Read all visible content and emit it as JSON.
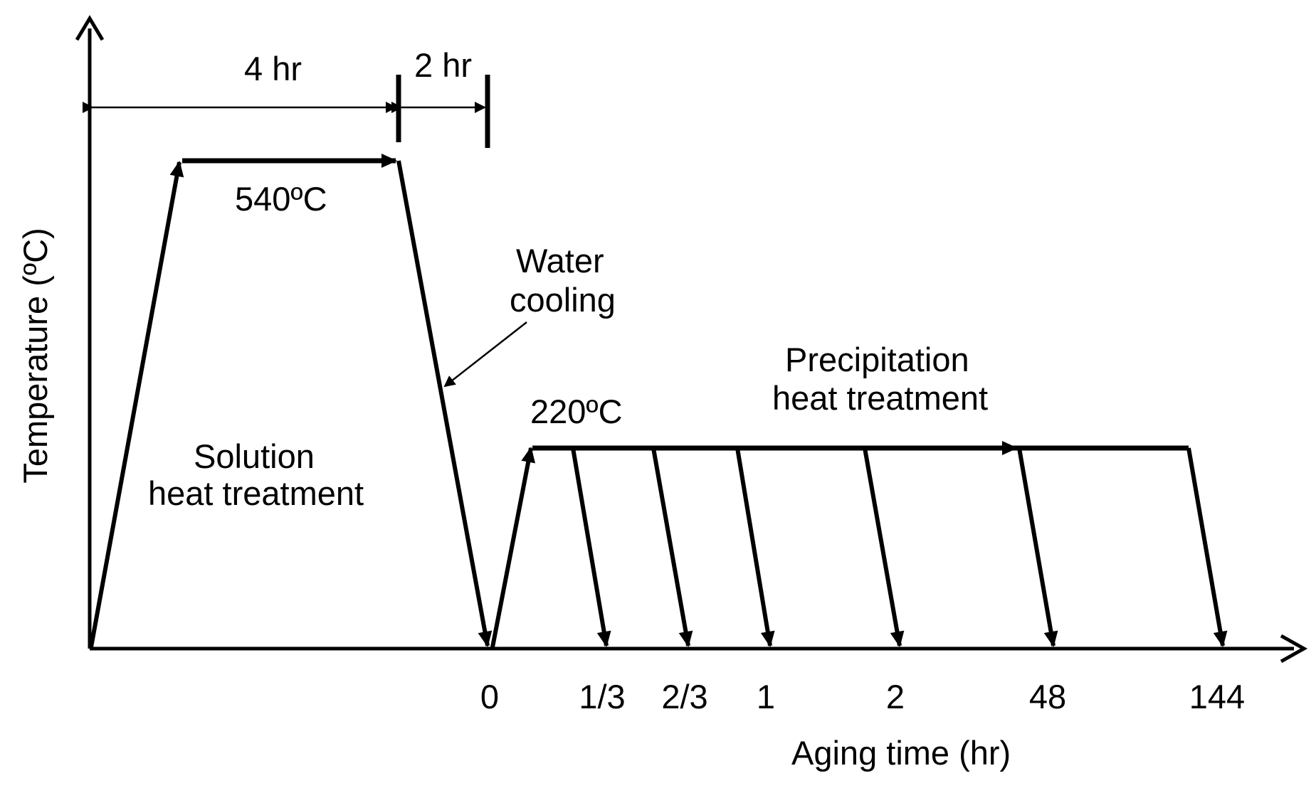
{
  "axes": {
    "y_label": "Temperature  (ºC)",
    "x_label": "Aging time (hr)",
    "x_ticks": [
      "0",
      "1/3",
      "2/3",
      "1",
      "2",
      "48",
      "144"
    ]
  },
  "annotations": {
    "duration_solution": "4 hr",
    "duration_cooling": "2 hr",
    "solution_temp": "540ºC",
    "aging_temp": "220ºC",
    "water_cooling_line1": "Water",
    "water_cooling_line2": "cooling",
    "solution_line1": "Solution",
    "solution_line2": "heat treatment",
    "precipitation_line1": "Precipitation",
    "precipitation_line2": "heat treatment"
  }
}
